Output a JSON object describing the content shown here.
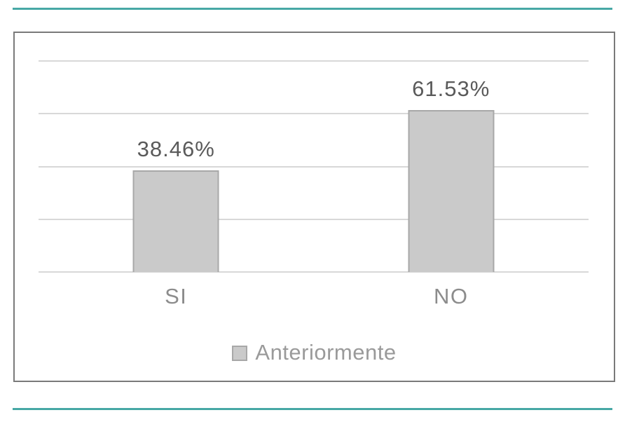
{
  "page": {
    "background": "#ffffff",
    "accent_color": "#47a8a5"
  },
  "chart_data": {
    "type": "bar",
    "title": "",
    "categories": [
      "SI",
      "NO"
    ],
    "series": [
      {
        "name": "Anteriormente",
        "values": [
          38.46,
          61.53
        ]
      }
    ],
    "value_labels": [
      "38.46%",
      "61.53%"
    ],
    "xlabel": "",
    "ylabel": "",
    "ylim": [
      0,
      80
    ],
    "ytick_step": 20,
    "ytick_labels_visible": false,
    "grid": "horizontal",
    "legend_position": "bottom-center",
    "colors": {
      "bar_fill": "#cacaca",
      "bar_border": "#a8a8a8",
      "gridline": "#d8d8d8",
      "frame_border": "#7a7a7a",
      "value_label_text": "#5a5a5a",
      "category_text": "#8c8c8c",
      "legend_text": "#9a9a9a"
    }
  },
  "legend": {
    "items": [
      {
        "label": "Anteriormente",
        "swatch_color": "#cacaca",
        "swatch_border": "#a8a8a8"
      }
    ]
  }
}
